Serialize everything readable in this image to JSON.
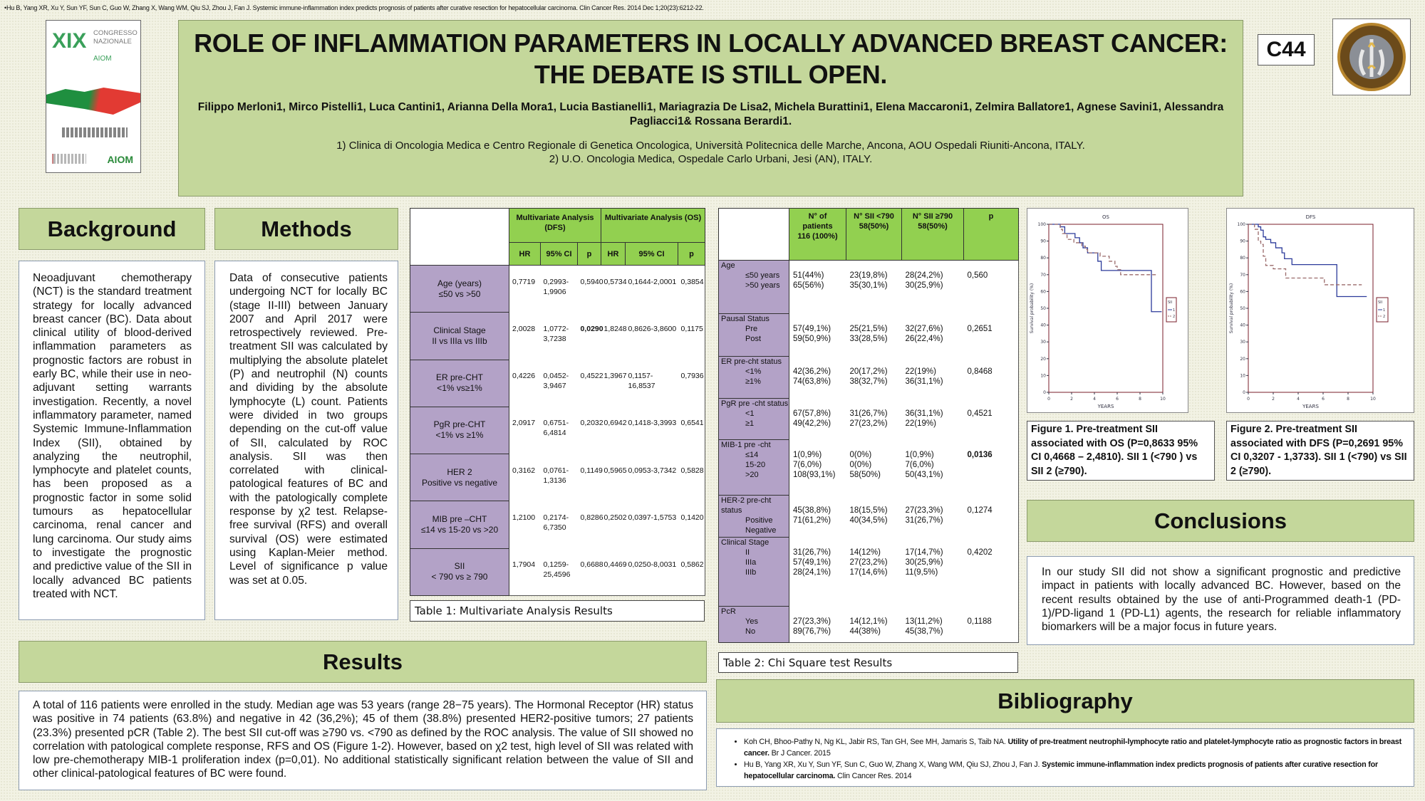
{
  "top_citation": "•Hu B, Yang XR, Xu Y, Sun YF, Sun C, Guo W, Zhang X, Wang WM, Qiu SJ, Zhou J, Fan J. Systemic immune-inflammation  index predicts prognosis of patients after curative resection for hepatocellular carcinoma. Clin Cancer Res. 2014 Dec 1;20(23):6212-22.",
  "logo": {
    "big": "XIX",
    "line": "CONGRESSO NAZIONALE",
    "org": "AIOM",
    "mark": "AIOM"
  },
  "header": {
    "title": "ROLE OF INFLAMMATION PARAMETERS IN LOCALLY ADVANCED BREAST CANCER: THE DEBATE IS STILL OPEN.",
    "authors": "Filippo Merloni1, Mirco Pistelli1, Luca Cantini1, Arianna Della Mora1, Lucia Bastianelli1, Mariagrazia De Lisa2, Michela Burattini1, Elena Maccaroni1, Zelmira Ballatore1, Agnese Savini1, Alessandra Pagliacci1& Rossana Berardi1.",
    "affiliation1": "1) Clinica di Oncologia Medica e Centro Regionale di Genetica Oncologica, Università Politecnica delle Marche, Ancona, AOU Ospedali Riuniti-Ancona, ITALY.",
    "affiliation2": "2) U.O. Oncologia Medica, Ospedale Carlo Urbani, Jesi (AN), ITALY.",
    "code": "C44",
    "seal_text": "UNIVERSITÀ POLITECNICA DELLE MARCHE"
  },
  "background": {
    "title": "Background",
    "body": "Neoadjuvant chemotherapy (NCT) is the standard treatment strategy for locally advanced breast cancer (BC). Data about clinical utility of blood-derived inflammation parameters as prognostic factors are robust in early BC, while their use in neo-adjuvant setting warrants investigation. Recently, a novel inflammatory parameter, named Systemic Immune-Inflammation Index (SII), obtained by analyzing the neutrophil, lymphocyte and platelet counts, has been proposed as a prognostic factor in some solid tumours as hepatocellular carcinoma, renal cancer and lung carcinoma. Our study aims to investigate the prognostic and predictive value of the SII in locally advanced BC patients treated with NCT."
  },
  "methods": {
    "title": "Methods",
    "body": "Data of consecutive patients undergoing NCT for locally BC (stage II-III) between January 2007 and April 2017 were retrospectively reviewed. Pre-treatment SII was calculated by multiplying the absolute platelet (P) and neutrophil (N) counts and dividing by the absolute lymphocyte (L) count. Patients were divided in two groups depending on the cut-off value of SII, calculated by ROC analysis. SII was then correlated with clinical-patological features of BC and with the patologically complete response by χ2 test. Relapse-free survival (RFS) and overall survival (OS) were estimated using Kaplan-Meier method. Level of significance p value was set at 0.05."
  },
  "table1": {
    "groups": [
      "Multivariate Analysis (DFS)",
      "Multivariate Analysis (OS)"
    ],
    "subheaders": [
      "HR",
      "95% CI",
      "p",
      "HR",
      "95% CI",
      "p"
    ],
    "rows": [
      {
        "label": "Age (years)\n≤50 vs >50",
        "cells": [
          "0,7719",
          "0,2993-\n1,9906",
          "0,5940",
          "0,5734",
          "0,1644-2,0001",
          "0,3854"
        ]
      },
      {
        "label": "Clinical Stage\nII vs IIIa vs IIIb",
        "cells": [
          "2,0028",
          "1,0772-\n3,7238",
          "0,0290",
          "1,8248",
          "0,8626-3,8600",
          "0,1175"
        ],
        "bold": 2
      },
      {
        "label": "ER pre-CHT\n<1% vs≥1%",
        "cells": [
          "0,4226",
          "0,0452-\n3,9467",
          "0,4522",
          "1,3967",
          "0,1157-16,8537",
          "0,7936"
        ]
      },
      {
        "label": "PgR pre-CHT\n<1% vs ≥1%",
        "cells": [
          "2,0917",
          "0,6751-\n6,4814",
          "0,2032",
          "0,6942",
          "0,1418-3,3993",
          "0,6541"
        ]
      },
      {
        "label": "HER 2\nPositive vs negative",
        "cells": [
          "0,3162",
          "0,0761-\n1,3136",
          "0,1149",
          "0,5965",
          "0,0953-3,7342",
          "0,5828"
        ]
      },
      {
        "label": "MIB pre –CHT\n≤14 vs 15-20 vs >20",
        "cells": [
          "1,2100",
          "0,2174-\n6,7350",
          "0,8286",
          "0,2502",
          "0,0397-1,5753",
          "0,1420"
        ]
      },
      {
        "label": "SII\n< 790 vs ≥ 790",
        "cells": [
          "1,7904",
          "0,1259-\n25,4596",
          "0,6688",
          "0,4469",
          "0,0250-8,0031",
          "0,5862"
        ]
      }
    ],
    "caption": "Table 1: Multivariate Analysis Results"
  },
  "table2": {
    "headers": [
      "N° of\npatients\n116 (100%)",
      "N° SII <790\n58(50%)",
      "N° SII ≥790\n58(50%)",
      "p"
    ],
    "rows": [
      {
        "group": "Age",
        "subs": [
          "≤50 years",
          ">50 years"
        ],
        "cells": [
          "51(44%)\n65(56%)",
          "23(19,8%)\n35(30,1%)",
          "28(24,2%)\n30(25,9%)",
          "0,560"
        ]
      },
      {
        "group": "Pausal Status",
        "subs": [
          "Pre",
          "Post"
        ],
        "cells": [
          "57(49,1%)\n59(50,9%)",
          "25(21,5%)\n33(28,5%)",
          "32(27,6%)\n26(22,4%)",
          "0,2651"
        ]
      },
      {
        "group": "ER pre-cht status",
        "subs": [
          "<1%",
          "≥1%"
        ],
        "cells": [
          "42(36,2%)\n74(63,8%)",
          "20(17,2%)\n38(32,7%)",
          "22(19%)\n36(31,1%)",
          "0,8468"
        ]
      },
      {
        "group": "PgR pre -cht status",
        "subs": [
          "<1",
          "≥1"
        ],
        "cells": [
          "67(57,8%)\n49(42,2%)",
          "31(26,7%)\n27(23,2%)",
          "36(31,1%)\n22(19%)",
          "0,4521"
        ]
      },
      {
        "group": "MIB-1 pre -cht",
        "subs": [
          "≤14",
          "15-20",
          ">20"
        ],
        "cells": [
          "1(0,9%)\n7(6,0%)\n108(93,1%)",
          "0(0%)\n0(0%)\n58(50%)",
          "1(0,9%)\n7(6,0%)\n50(43,1%)",
          "0,0136"
        ],
        "bold": true
      },
      {
        "group": "HER-2 pre-cht status",
        "subs": [
          "Positive",
          "Negative"
        ],
        "cells": [
          "45(38,8%)\n71(61,2%)",
          "18(15,5%)\n40(34,5%)",
          "27(23,3%)\n31(26,7%)",
          "0,1274"
        ]
      },
      {
        "group": "Clinical Stage",
        "subs": [
          "II",
          "IIIa",
          "IIIb"
        ],
        "cells": [
          "31(26,7%)\n57(49,1%)\n28(24,1%)",
          "14(12%)\n27(23,2%)\n17(14,6%)",
          "17(14,7%)\n30(25,9%)\n11(9,5%)",
          "0,4202"
        ]
      },
      {
        "group": "PcR",
        "subs": [
          "Yes",
          "No"
        ],
        "cells": [
          "27(23,3%)\n89(76,7%)",
          "14(12,1%)\n44(38%)",
          "13(11,2%)\n45(38,7%)",
          "0,1188"
        ]
      }
    ],
    "caption": "Table 2: Chi Square test Results"
  },
  "chart_data": [
    {
      "type": "line",
      "title": "OS",
      "xlabel": "YEARS",
      "ylabel": "Survival probability (%)",
      "xlim": [
        0,
        10
      ],
      "ylim": [
        0,
        100
      ],
      "xticks": [
        "0",
        "2",
        "4",
        "6",
        "8",
        "10"
      ],
      "yticks": [
        "0",
        "10",
        "20",
        "30",
        "40",
        "50",
        "60",
        "70",
        "80",
        "90",
        "100"
      ],
      "legend_title": "SII",
      "legend_position": "right",
      "series": [
        {
          "name": "1",
          "style": "solid",
          "color": "#2b3a9a",
          "steps": [
            [
              0,
              100
            ],
            [
              1.0,
              98.5
            ],
            [
              1.4,
              94.5
            ],
            [
              2.3,
              92
            ],
            [
              2.7,
              89
            ],
            [
              3.0,
              86
            ],
            [
              3.4,
              83
            ],
            [
              4.3,
              78
            ],
            [
              4.6,
              72.5
            ],
            [
              9.0,
              48
            ],
            [
              9.9,
              48
            ]
          ]
        },
        {
          "name": "2",
          "style": "dashed",
          "color": "#9a6a6a",
          "steps": [
            [
              0,
              100
            ],
            [
              1.0,
              97
            ],
            [
              1.2,
              94.5
            ],
            [
              1.6,
              91
            ],
            [
              2.2,
              89
            ],
            [
              2.9,
              87
            ],
            [
              3.2,
              85
            ],
            [
              3.4,
              83
            ],
            [
              4.5,
              81
            ],
            [
              5.3,
              78
            ],
            [
              5.8,
              75
            ],
            [
              6.0,
              73
            ],
            [
              6.3,
              70
            ],
            [
              9.4,
              70
            ]
          ]
        }
      ],
      "caption": "Figure 1. Pre-treatment SII associated with OS (P=0,8633  95% CI 0,4668 – 2,4810). SII 1 (<790 ) vs SII 2 (≥790)."
    },
    {
      "type": "line",
      "title": "DFS",
      "xlabel": "YEARS",
      "ylabel": "Survival probability (%)",
      "xlim": [
        0,
        10
      ],
      "ylim": [
        0,
        100
      ],
      "xticks": [
        "0",
        "2",
        "4",
        "6",
        "8",
        "10"
      ],
      "yticks": [
        "0",
        "10",
        "20",
        "30",
        "40",
        "50",
        "60",
        "70",
        "80",
        "90",
        "100"
      ],
      "legend_title": "SII",
      "legend_position": "right",
      "series": [
        {
          "name": "1",
          "style": "solid",
          "color": "#2b3a9a",
          "steps": [
            [
              0,
              100
            ],
            [
              0.6,
              100
            ],
            [
              0.8,
              98.5
            ],
            [
              1.0,
              96.5
            ],
            [
              1.2,
              92.5
            ],
            [
              1.4,
              91
            ],
            [
              1.8,
              89
            ],
            [
              2.2,
              86
            ],
            [
              2.7,
              83
            ],
            [
              2.9,
              79.5
            ],
            [
              3.5,
              76
            ],
            [
              7.1,
              57
            ],
            [
              9.5,
              57
            ]
          ]
        },
        {
          "name": "2",
          "style": "dashed",
          "color": "#9a6a6a",
          "steps": [
            [
              0,
              100
            ],
            [
              0.5,
              97
            ],
            [
              0.8,
              90
            ],
            [
              1.0,
              88
            ],
            [
              1.2,
              81
            ],
            [
              1.4,
              75.5
            ],
            [
              2.0,
              73.5
            ],
            [
              3.0,
              68
            ],
            [
              6.1,
              64
            ],
            [
              9.1,
              64
            ]
          ]
        }
      ],
      "caption": "Figure 2. Pre-treatment SII associated with  DFS (P=0,2691  95% CI 0,3207 - 1,3733). SII 1 (<790) vs SII 2 (≥790)."
    }
  ],
  "conclusions": {
    "title": "Conclusions",
    "body": "In our study SII did not show a significant prognostic and predictive impact in patients with locally advanced BC. However, based on the recent results obtained by the use of anti-Programmed death-1 (PD-1)/PD-ligand 1 (PD-L1) agents, the research for reliable inflammatory biomarkers will be a major focus in future years."
  },
  "results": {
    "title": "Results",
    "body": "A total of 116 patients were enrolled in the study. Median age was 53 years (range 28−75 years). The Hormonal Receptor (HR) status was positive in 74 patients (63.8%) and negative in 42 (36,2%); 45 of them (38.8%) presented HER2-positive tumors; 27 patients (23.3%) presented pCR (Table 2). The best SII cut-off was ≥790 vs. <790 as defined by the ROC analysis. The value of SII showed no correlation with patological complete response, RFS and OS (Figure 1-2). However, based on χ2 test, high level of SII was related with low pre-chemotherapy MIB-1 proliferation index (p=0,01). No additional statistically significant relation between the value of SII and other clinical-patological features of BC were found."
  },
  "bibliography": {
    "title": "Bibliography",
    "refs": [
      {
        "authors": "Koh CH, Bhoo-Pathy N, Ng KL, Jabir RS, Tan GH, See MH, Jamaris S, Taib NA. ",
        "title": "Utility of pre-treatment neutrophil-lymphocyte  ratio and platelet-lymphocyte  ratio as prognostic factors in breast cancer.",
        "source": " Br J Cancer. 2015"
      },
      {
        "authors": "Hu B, Yang XR, Xu Y, Sun YF, Sun C, Guo W, Zhang X, Wang WM, Qiu SJ, Zhou J, Fan J. ",
        "title": "Systemic immune-inflammation  index predicts prognosis of patients after curative resection for hepatocellular carcinoma.",
        "source": "  Clin Cancer Res. 2014"
      }
    ]
  }
}
